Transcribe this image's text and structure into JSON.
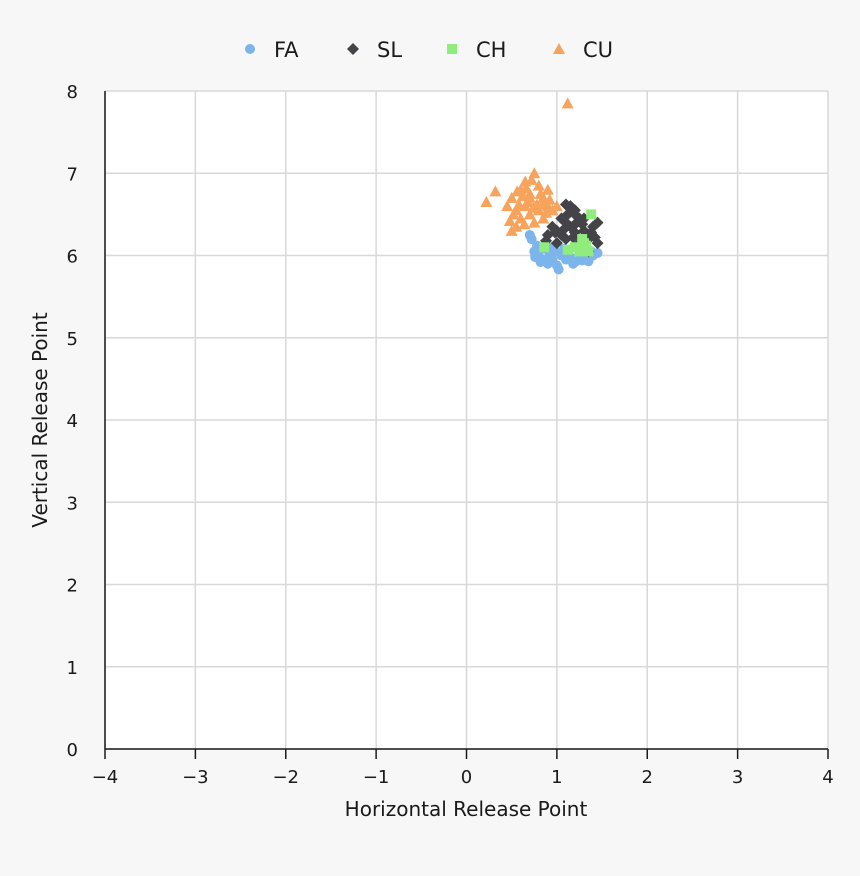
{
  "chart_data": {
    "type": "scatter",
    "title": "",
    "xlabel": "Horizontal Release Point",
    "ylabel": "Vertical Release Point",
    "xlim": [
      -4,
      4
    ],
    "ylim": [
      0,
      8
    ],
    "xticks": [
      -4,
      -3,
      -2,
      -1,
      0,
      1,
      2,
      3,
      4
    ],
    "yticks": [
      0,
      1,
      2,
      3,
      4,
      5,
      6,
      7,
      8
    ],
    "grid": true,
    "legend_position": "top-center",
    "series": [
      {
        "name": "FA",
        "color": "#7cb5ec",
        "marker": "circle",
        "points": [
          [
            0.8,
            6.0
          ],
          [
            0.85,
            5.95
          ],
          [
            0.9,
            5.9
          ],
          [
            0.95,
            5.95
          ],
          [
            1.0,
            5.88
          ],
          [
            1.02,
            5.83
          ],
          [
            1.1,
            5.95
          ],
          [
            1.15,
            5.98
          ],
          [
            1.2,
            5.92
          ],
          [
            1.25,
            5.95
          ],
          [
            1.3,
            5.97
          ],
          [
            1.35,
            5.93
          ],
          [
            1.4,
            6.0
          ],
          [
            1.45,
            6.03
          ],
          [
            0.75,
            6.05
          ],
          [
            0.78,
            6.12
          ],
          [
            0.72,
            6.2
          ],
          [
            0.7,
            6.25
          ],
          [
            0.88,
            6.08
          ],
          [
            0.92,
            6.02
          ],
          [
            0.98,
            6.05
          ],
          [
            1.05,
            6.0
          ],
          [
            1.12,
            6.03
          ],
          [
            0.82,
            5.92
          ],
          [
            0.76,
            5.98
          ],
          [
            1.18,
            5.9
          ],
          [
            1.28,
            5.94
          ],
          [
            1.38,
            6.05
          ],
          [
            0.95,
            6.1
          ],
          [
            1.08,
            6.08
          ]
        ]
      },
      {
        "name": "SL",
        "color": "#434348",
        "marker": "diamond",
        "points": [
          [
            1.0,
            6.3
          ],
          [
            1.05,
            6.25
          ],
          [
            1.1,
            6.4
          ],
          [
            1.15,
            6.35
          ],
          [
            1.2,
            6.5
          ],
          [
            1.25,
            6.45
          ],
          [
            1.3,
            6.3
          ],
          [
            1.35,
            6.2
          ],
          [
            1.4,
            6.35
          ],
          [
            1.45,
            6.4
          ],
          [
            1.1,
            6.2
          ],
          [
            1.0,
            6.15
          ],
          [
            0.9,
            6.25
          ],
          [
            1.2,
            6.55
          ],
          [
            1.15,
            6.6
          ],
          [
            1.1,
            6.62
          ],
          [
            1.3,
            6.45
          ],
          [
            1.25,
            6.15
          ],
          [
            1.35,
            6.05
          ],
          [
            1.45,
            6.15
          ],
          [
            1.05,
            6.45
          ],
          [
            0.95,
            6.35
          ],
          [
            1.2,
            6.28
          ],
          [
            1.28,
            6.38
          ],
          [
            1.18,
            6.22
          ],
          [
            1.08,
            6.32
          ],
          [
            0.98,
            6.28
          ],
          [
            1.38,
            6.28
          ],
          [
            1.22,
            6.4
          ],
          [
            1.12,
            6.5
          ],
          [
            0.88,
            6.18
          ],
          [
            1.42,
            6.22
          ]
        ]
      },
      {
        "name": "CH",
        "color": "#90ed7d",
        "marker": "square",
        "points": [
          [
            0.86,
            6.1
          ],
          [
            1.2,
            6.1
          ],
          [
            1.25,
            6.05
          ],
          [
            1.3,
            6.15
          ],
          [
            1.35,
            6.05
          ],
          [
            1.38,
            6.5
          ],
          [
            1.12,
            6.07
          ],
          [
            1.28,
            6.2
          ],
          [
            1.32,
            6.12
          ]
        ]
      },
      {
        "name": "CU",
        "color": "#f7a35c",
        "marker": "triangle",
        "points": [
          [
            1.12,
            7.85
          ],
          [
            0.22,
            6.65
          ],
          [
            0.32,
            6.78
          ],
          [
            0.45,
            6.6
          ],
          [
            0.5,
            6.7
          ],
          [
            0.55,
            6.55
          ],
          [
            0.6,
            6.8
          ],
          [
            0.65,
            6.9
          ],
          [
            0.7,
            6.75
          ],
          [
            0.75,
            7.0
          ],
          [
            0.8,
            6.85
          ],
          [
            0.85,
            6.7
          ],
          [
            0.9,
            6.6
          ],
          [
            0.95,
            6.55
          ],
          [
            1.0,
            6.6
          ],
          [
            0.6,
            6.45
          ],
          [
            0.55,
            6.35
          ],
          [
            0.5,
            6.3
          ],
          [
            0.65,
            6.6
          ],
          [
            0.7,
            6.5
          ],
          [
            0.75,
            6.4
          ],
          [
            0.8,
            6.55
          ],
          [
            0.85,
            6.45
          ],
          [
            0.9,
            6.8
          ],
          [
            0.72,
            6.92
          ],
          [
            0.68,
            6.65
          ],
          [
            0.62,
            6.72
          ],
          [
            0.58,
            6.62
          ],
          [
            0.52,
            6.5
          ],
          [
            0.48,
            6.42
          ],
          [
            0.78,
            6.62
          ],
          [
            0.82,
            6.75
          ],
          [
            0.88,
            6.52
          ],
          [
            0.92,
            6.68
          ],
          [
            0.66,
            6.82
          ],
          [
            0.74,
            6.58
          ],
          [
            0.56,
            6.78
          ],
          [
            0.64,
            6.38
          ],
          [
            0.84,
            6.62
          ],
          [
            0.7,
            6.7
          ]
        ]
      }
    ]
  }
}
